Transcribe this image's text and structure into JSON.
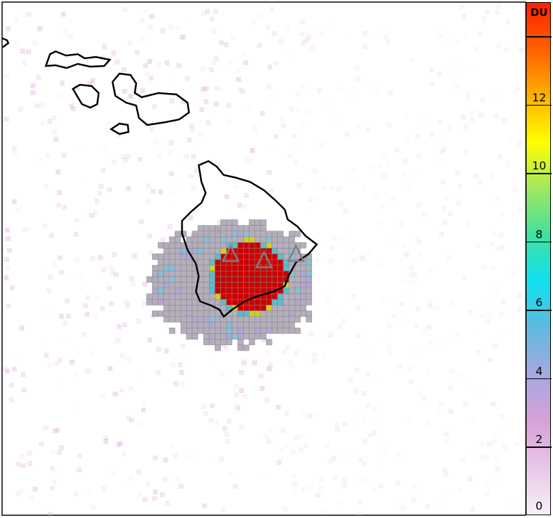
{
  "colorbar": {
    "unit": "DU",
    "range": [
      0,
      15
    ],
    "ticks": [
      "0",
      "2",
      "4",
      "6",
      "8",
      "10",
      "12"
    ],
    "colors": [
      "#f8f0f8",
      "#e8c8e8",
      "#d8a0d8",
      "#a8a8e0",
      "#60b8e0",
      "#10e0f0",
      "#40e0a0",
      "#a0e860",
      "#ffff00",
      "#ffb000",
      "#ff6000",
      "#ff2000"
    ]
  },
  "map": {
    "plume_core_color": "#cc0000",
    "plume_edge_color": "#a8a0b0",
    "volcano_markers": 3,
    "coastline_color": "#000000"
  }
}
